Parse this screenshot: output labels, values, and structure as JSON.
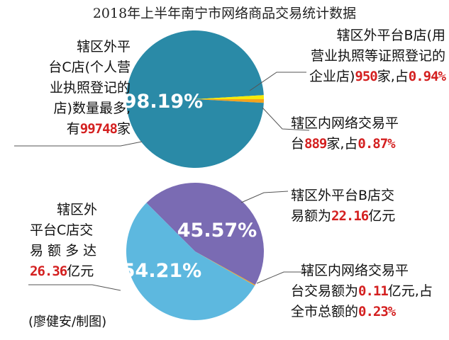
{
  "page_title": "2018年上半年南宁市网络商品交易统计数据",
  "colors": {
    "store_c_count": "#2a8aa7",
    "store_b_count": "#f6ea0a",
    "internal_count": "#f5a31c",
    "store_c_amount": "#5db8df",
    "store_b_amount": "#7a6bb3",
    "internal_amount": "#f5a31c",
    "highlight": "#d42020"
  },
  "chart_data": [
    {
      "type": "pie",
      "measure": "数量",
      "slices": [
        {
          "label": "辖区外平台C店",
          "count": 99748,
          "percent": 98.19
        },
        {
          "label": "辖区外平台B店",
          "count": 950,
          "percent": 0.94
        },
        {
          "label": "辖区内网络交易平台",
          "count": 889,
          "percent": 0.87
        }
      ],
      "center_label": "98.19%"
    },
    {
      "type": "pie",
      "measure": "交易额",
      "unit": "亿元",
      "slices": [
        {
          "label": "辖区外平台C店",
          "amount": 26.36,
          "percent": 54.21
        },
        {
          "label": "辖区外平台B店",
          "amount": 22.16,
          "percent": 45.57
        },
        {
          "label": "辖区内网络交易平台",
          "amount": 0.11,
          "percent": 0.23
        }
      ],
      "labels_on_pie": [
        "54.21%",
        "45.57%"
      ]
    }
  ],
  "annotations": {
    "c_count": {
      "line1": "辖区外平",
      "line2": "台C店(个人营",
      "line3": "业执照登记的",
      "line4": "店)数量最多,",
      "line5_pre": "有",
      "line5_num": "99748",
      "line5_post": "家"
    },
    "b_count": {
      "line1": "辖区外平台B店(用",
      "line2": "营业执照等证照登记的",
      "line3_pre": "企业店)",
      "line3_num": "950",
      "line3_mid": "家,占",
      "line3_pct": "0.94%"
    },
    "internal_count": {
      "line1": "辖区内网络交易平",
      "line2_pre": "台",
      "line2_num": "889",
      "line2_mid": "家,占",
      "line2_pct": "0.87%"
    },
    "c_amount": {
      "line1": "辖区外",
      "line2": "平台C店交",
      "line3": "易 额 多 达",
      "line4_num": "26.36",
      "line4_post": "亿元"
    },
    "b_amount": {
      "line1": "辖区外平台B店交",
      "line2_pre": "易额为",
      "line2_num": "22.16",
      "line2_post": "亿元"
    },
    "internal_amount": {
      "line1": "辖区内网络交易平",
      "line2_pre": "台交易额为",
      "line2_num": "0.11",
      "line2_post": "亿元,占",
      "line3_pre": "全市总额的",
      "line3_pct": "0.23%"
    }
  },
  "credit": "(廖健安/制图)"
}
